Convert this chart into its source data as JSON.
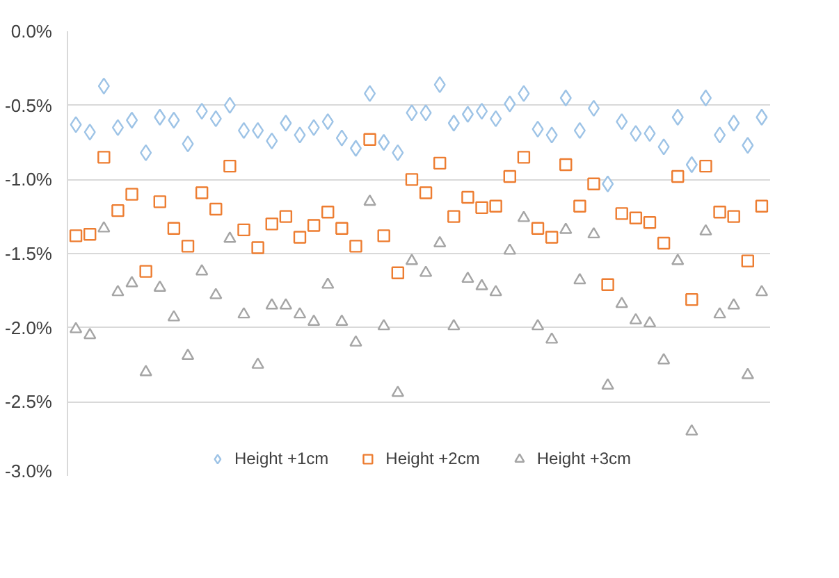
{
  "chart_data": {
    "type": "scatter",
    "categories": [
      null,
      null,
      null,
      null,
      null,
      null,
      null,
      null,
      null,
      null,
      null,
      null,
      null,
      null,
      null,
      null,
      null,
      null,
      null,
      null,
      null,
      null,
      null,
      null,
      null,
      null,
      null,
      null,
      null,
      null,
      null,
      null,
      null,
      null,
      null,
      null,
      null,
      null,
      null,
      null,
      null,
      null,
      null,
      null,
      null,
      null,
      null,
      null,
      null,
      null
    ],
    "ylim": [
      -3.0,
      0.0
    ],
    "yticks": [
      {
        "value": 0,
        "label": "0.0%"
      },
      {
        "value": -0.5,
        "label": "-0.5%"
      },
      {
        "value": -1.0,
        "label": "-1.0%"
      },
      {
        "value": -1.5,
        "label": "-1.5%"
      },
      {
        "value": -2.0,
        "label": "-2.0%"
      },
      {
        "value": -2.5,
        "label": "-2.5%"
      },
      {
        "value": -3.0,
        "label": "-3.0%"
      }
    ],
    "grid": "y",
    "legend": "bottom",
    "series": [
      {
        "name": "Height +1cm",
        "color": "#9dc3e6",
        "marker": "diamond",
        "values": [
          -0.63,
          -0.68,
          -0.37,
          -0.65,
          -0.6,
          -0.82,
          -0.58,
          -0.6,
          -0.76,
          -0.54,
          -0.59,
          -0.5,
          -0.67,
          -0.67,
          -0.74,
          -0.62,
          -0.7,
          -0.65,
          -0.61,
          -0.72,
          -0.79,
          -0.42,
          -0.75,
          -0.82,
          -0.55,
          -0.55,
          -0.36,
          -0.62,
          -0.56,
          -0.54,
          -0.59,
          -0.49,
          -0.42,
          -0.66,
          -0.7,
          -0.45,
          -0.67,
          -0.52,
          -1.03,
          -0.61,
          -0.69,
          -0.69,
          -0.78,
          -0.58,
          -0.9,
          -0.45,
          -0.7,
          -0.62,
          -0.77,
          -0.58
        ]
      },
      {
        "name": "Height +2cm",
        "color": "#ed7d31",
        "marker": "square",
        "values": [
          -1.38,
          -1.37,
          -0.85,
          -1.21,
          -1.1,
          -1.62,
          -1.15,
          -1.33,
          -1.45,
          -1.09,
          -1.2,
          -0.91,
          -1.34,
          -1.46,
          -1.3,
          -1.25,
          -1.39,
          -1.31,
          -1.22,
          -1.33,
          -1.45,
          -0.73,
          -1.38,
          -1.63,
          -1.0,
          -1.09,
          -0.89,
          -1.25,
          -1.12,
          -1.19,
          -1.18,
          -0.98,
          -0.85,
          -1.33,
          -1.39,
          -0.9,
          -1.18,
          -1.03,
          -1.71,
          -1.23,
          -1.26,
          -1.29,
          -1.43,
          -0.98,
          -1.81,
          -0.91,
          -1.22,
          -1.25,
          -1.55,
          -1.18
        ]
      },
      {
        "name": "Height +3cm",
        "color": "#a5a5a5",
        "marker": "triangle",
        "values": [
          -2.01,
          -2.05,
          -1.33,
          -1.76,
          -1.7,
          -2.3,
          -1.73,
          -1.93,
          -2.19,
          -1.62,
          -1.78,
          -1.4,
          -1.91,
          -2.25,
          -1.85,
          -1.85,
          -1.91,
          -1.96,
          -1.71,
          -1.96,
          -2.1,
          -1.15,
          -1.99,
          -2.44,
          -1.55,
          -1.63,
          -1.43,
          -1.99,
          -1.67,
          -1.72,
          -1.76,
          -1.48,
          -1.26,
          -1.99,
          -2.08,
          -1.34,
          -1.68,
          -1.37,
          -2.39,
          -1.84,
          -1.95,
          -1.97,
          -2.22,
          -1.55,
          -2.7,
          -1.35,
          -1.91,
          -1.85,
          -2.32,
          -1.76
        ]
      }
    ]
  }
}
